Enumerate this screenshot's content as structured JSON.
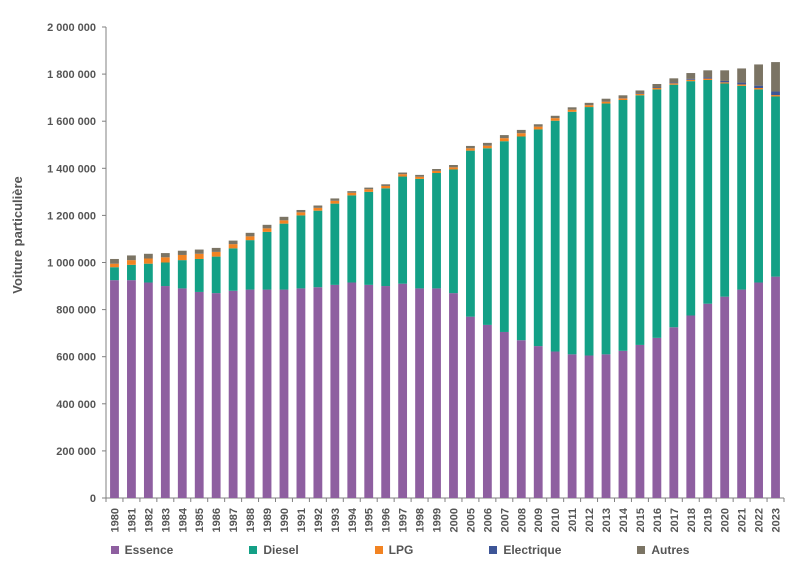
{
  "chart_data": {
    "type": "bar",
    "stacked": true,
    "title": "",
    "xlabel": "",
    "ylabel": "Voiture particulière",
    "ylim": [
      0,
      2000000
    ],
    "yticks": [
      0,
      200000,
      400000,
      600000,
      800000,
      1000000,
      1200000,
      1400000,
      1600000,
      1800000,
      2000000
    ],
    "ytick_labels": [
      "0",
      "200 000",
      "400 000",
      "600 000",
      "800 000",
      "1 000 000",
      "1 200 000",
      "1 400 000",
      "1 600 000",
      "1 800 000",
      "2 000 000"
    ],
    "grid": false,
    "legend_position": "bottom",
    "categories": [
      "1980",
      "1981",
      "1982",
      "1983",
      "1984",
      "1985",
      "1986",
      "1987",
      "1988",
      "1989",
      "1990",
      "1991",
      "1992",
      "1993",
      "1994",
      "1995",
      "1996",
      "1997",
      "1998",
      "1999",
      "2000",
      "2005",
      "2006",
      "2007",
      "2008",
      "2009",
      "2010",
      "2011",
      "2012",
      "2013",
      "2014",
      "2015",
      "2016",
      "2017",
      "2018",
      "2019",
      "2020",
      "2021",
      "2022",
      "2023"
    ],
    "series": [
      {
        "name": "Essence",
        "color": "#8e5fa0",
        "values": [
          925000,
          925000,
          915000,
          900000,
          890000,
          875000,
          870000,
          880000,
          885000,
          885000,
          885000,
          890000,
          895000,
          905000,
          915000,
          905000,
          900000,
          910000,
          890000,
          890000,
          870000,
          770000,
          735000,
          705000,
          670000,
          645000,
          622000,
          610000,
          605000,
          610000,
          625000,
          650000,
          680000,
          725000,
          775000,
          825000,
          855000,
          885000,
          915000,
          940000
        ]
      },
      {
        "name": "Diesel",
        "color": "#13a086",
        "values": [
          55000,
          65000,
          80000,
          100000,
          120000,
          140000,
          155000,
          180000,
          210000,
          245000,
          280000,
          310000,
          325000,
          345000,
          370000,
          395000,
          415000,
          455000,
          465000,
          490000,
          525000,
          705000,
          750000,
          810000,
          865000,
          920000,
          980000,
          1030000,
          1055000,
          1065000,
          1065000,
          1060000,
          1055000,
          1030000,
          995000,
          950000,
          905000,
          865000,
          820000,
          765000
        ]
      },
      {
        "name": "LPG",
        "color": "#f28322",
        "values": [
          15000,
          20000,
          22000,
          22000,
          22000,
          22000,
          20000,
          18000,
          16000,
          15000,
          14000,
          13000,
          12000,
          12000,
          11000,
          11000,
          10000,
          10000,
          9000,
          9000,
          9000,
          10000,
          11000,
          13000,
          14000,
          12000,
          11000,
          9000,
          8000,
          8000,
          7000,
          6000,
          6000,
          6000,
          6000,
          6000,
          5000,
          6000,
          6000,
          6000
        ]
      },
      {
        "name": "Electrique",
        "color": "#3d5597",
        "values": [
          0,
          0,
          0,
          0,
          0,
          0,
          0,
          0,
          0,
          0,
          0,
          0,
          0,
          0,
          0,
          0,
          0,
          0,
          0,
          0,
          0,
          0,
          0,
          0,
          0,
          0,
          0,
          0,
          0,
          500,
          1000,
          1500,
          2000,
          3000,
          3500,
          5000,
          6000,
          8000,
          10000,
          15000
        ]
      },
      {
        "name": "Autres",
        "color": "#7b7464",
        "values": [
          20000,
          20000,
          20000,
          18000,
          18000,
          18000,
          17000,
          15000,
          15000,
          15000,
          15000,
          10000,
          10000,
          10000,
          7000,
          7000,
          7000,
          7000,
          8000,
          8000,
          10000,
          10000,
          12000,
          13000,
          14000,
          10000,
          10000,
          10000,
          10000,
          12000,
          12000,
          13000,
          15000,
          18000,
          25000,
          30000,
          45000,
          60000,
          90000,
          125000
        ]
      }
    ]
  }
}
